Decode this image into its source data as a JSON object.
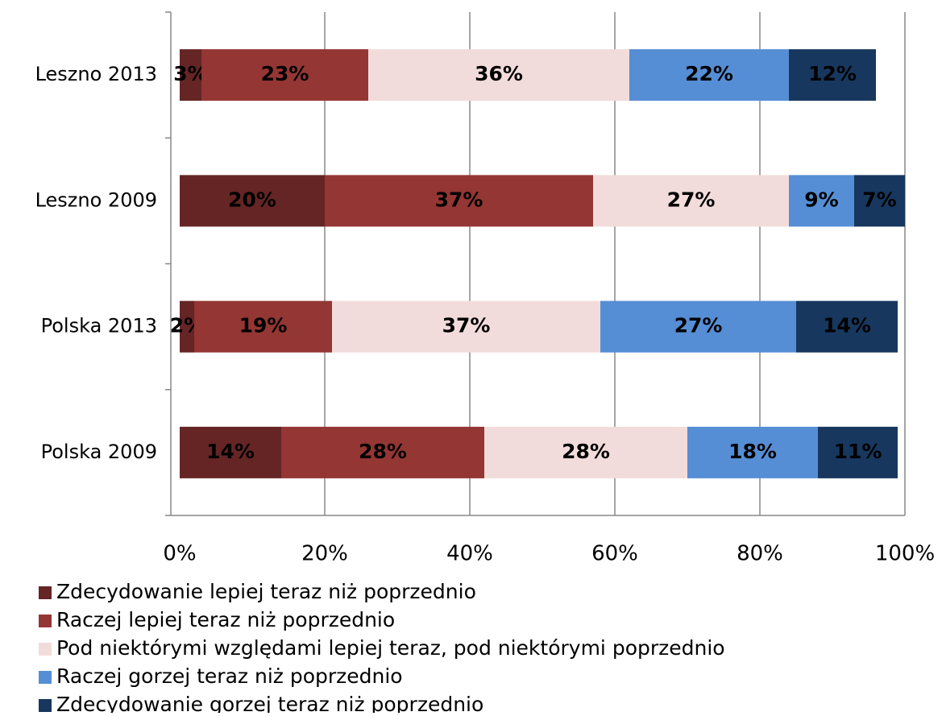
{
  "chart_data": {
    "type": "stacked-bar-horizontal",
    "categories": [
      "Leszno 2013",
      "Leszno 2009",
      "Polska 2013",
      "Polska 2009"
    ],
    "series": [
      {
        "name": "Zdecydowanie lepiej teraz niż poprzednio",
        "color": "#652525",
        "values": [
          3,
          20,
          2,
          14
        ],
        "value_labels": [
          "3%",
          "20%",
          "2%",
          "14%"
        ]
      },
      {
        "name": "Raczej lepiej teraz niż poprzednio",
        "color": "#943634",
        "values": [
          23,
          37,
          19,
          28
        ],
        "value_labels": [
          "23%",
          "37%",
          "19%",
          "28%"
        ]
      },
      {
        "name": "Pod niektórymi względami lepiej teraz, pod niektórymi poprzednio",
        "color": "#f2dcdb",
        "values": [
          36,
          27,
          37,
          28
        ],
        "value_labels": [
          "36%",
          "27%",
          "37%",
          "28%"
        ]
      },
      {
        "name": "Raczej gorzej teraz niż poprzednio",
        "color": "#558ed5",
        "values": [
          22,
          9,
          27,
          18
        ],
        "value_labels": [
          "22%",
          "9%",
          "27%",
          "18%"
        ]
      },
      {
        "name": "Zdecydowanie gorzej teraz niż poprzednio",
        "color": "#17375e",
        "values": [
          12,
          7,
          14,
          11
        ],
        "value_labels": [
          "12%",
          "7%",
          "14%",
          "11%"
        ]
      }
    ],
    "xlim": [
      0,
      100
    ],
    "xticks": [
      {
        "value": 0,
        "label": "0%"
      },
      {
        "value": 20,
        "label": "20%"
      },
      {
        "value": 40,
        "label": "40%"
      },
      {
        "value": 60,
        "label": "60%"
      },
      {
        "value": 80,
        "label": "80%"
      },
      {
        "value": 100,
        "label": "100%"
      }
    ],
    "grid": true,
    "legend": "bottom"
  }
}
